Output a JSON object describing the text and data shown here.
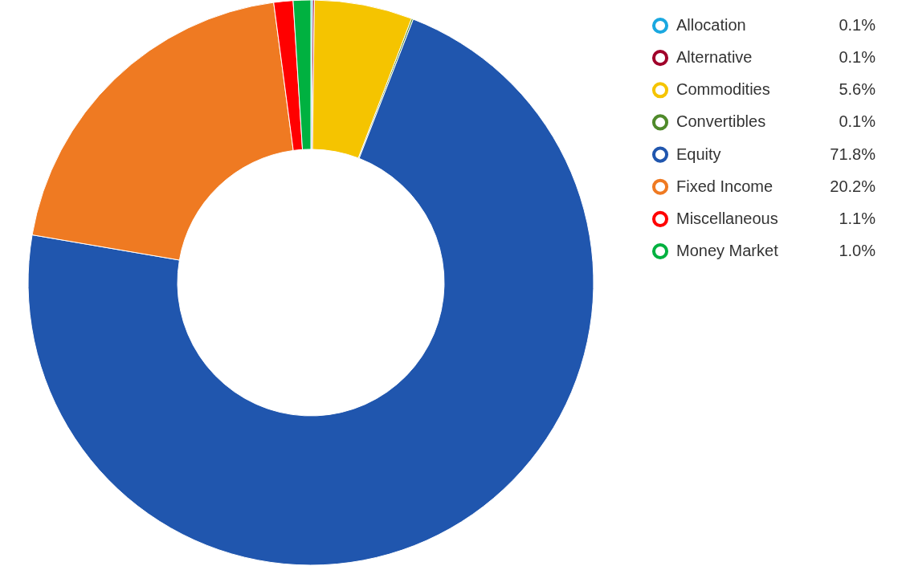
{
  "chart_data": {
    "type": "donut",
    "categories": [
      "Allocation",
      "Alternative",
      "Commodities",
      "Convertibles",
      "Equity",
      "Fixed Income",
      "Miscellaneous",
      "Money Market"
    ],
    "values": [
      0.1,
      0.1,
      5.6,
      0.1,
      71.8,
      20.2,
      1.1,
      1.0
    ],
    "value_labels": [
      "0.1%",
      "0.1%",
      "5.6%",
      "0.1%",
      "71.8%",
      "20.2%",
      "1.1%",
      "1.0%"
    ],
    "colors": [
      "#1aa8e0",
      "#a0002a",
      "#f5c400",
      "#4f8a2a",
      "#2056ae",
      "#ef7a22",
      "#ff0000",
      "#00b140"
    ],
    "legend": "top right"
  }
}
